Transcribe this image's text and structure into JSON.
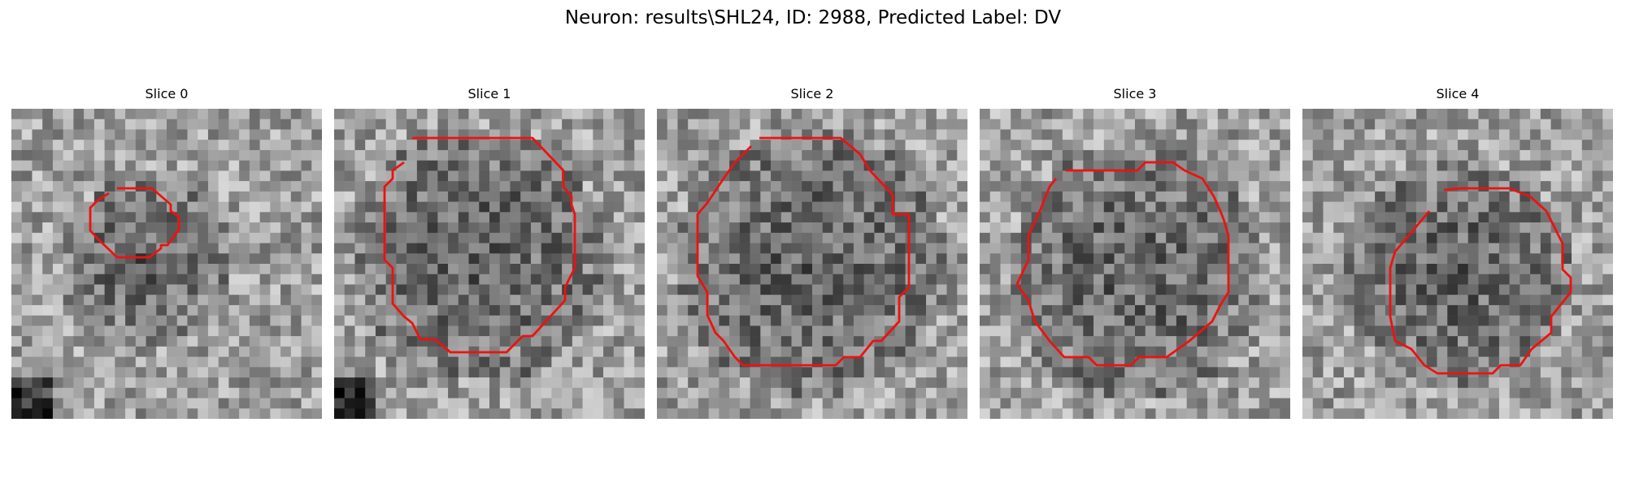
{
  "figure": {
    "suptitle": "Neuron: results\\SHL24, ID: 2988, Predicted Label: DV"
  },
  "panels": [
    {
      "title": "Slice 0",
      "seed": 11,
      "dark_center": [
        0.43,
        0.5
      ],
      "dark_radius": 0.2,
      "bottom_left_dark": true
    },
    {
      "title": "Slice 1",
      "seed": 23,
      "dark_center": [
        0.47,
        0.47
      ],
      "dark_radius": 0.33,
      "bottom_left_dark": true
    },
    {
      "title": "Slice 2",
      "seed": 37,
      "dark_center": [
        0.5,
        0.5
      ],
      "dark_radius": 0.36,
      "bottom_left_dark": false
    },
    {
      "title": "Slice 3",
      "seed": 41,
      "dark_center": [
        0.5,
        0.53
      ],
      "dark_radius": 0.33,
      "bottom_left_dark": false
    },
    {
      "title": "Slice 4",
      "seed": 53,
      "dark_center": [
        0.5,
        0.53
      ],
      "dark_radius": 0.29,
      "bottom_left_dark": false
    }
  ],
  "colors": {
    "contour": "#ee1111",
    "background": "#ffffff"
  }
}
